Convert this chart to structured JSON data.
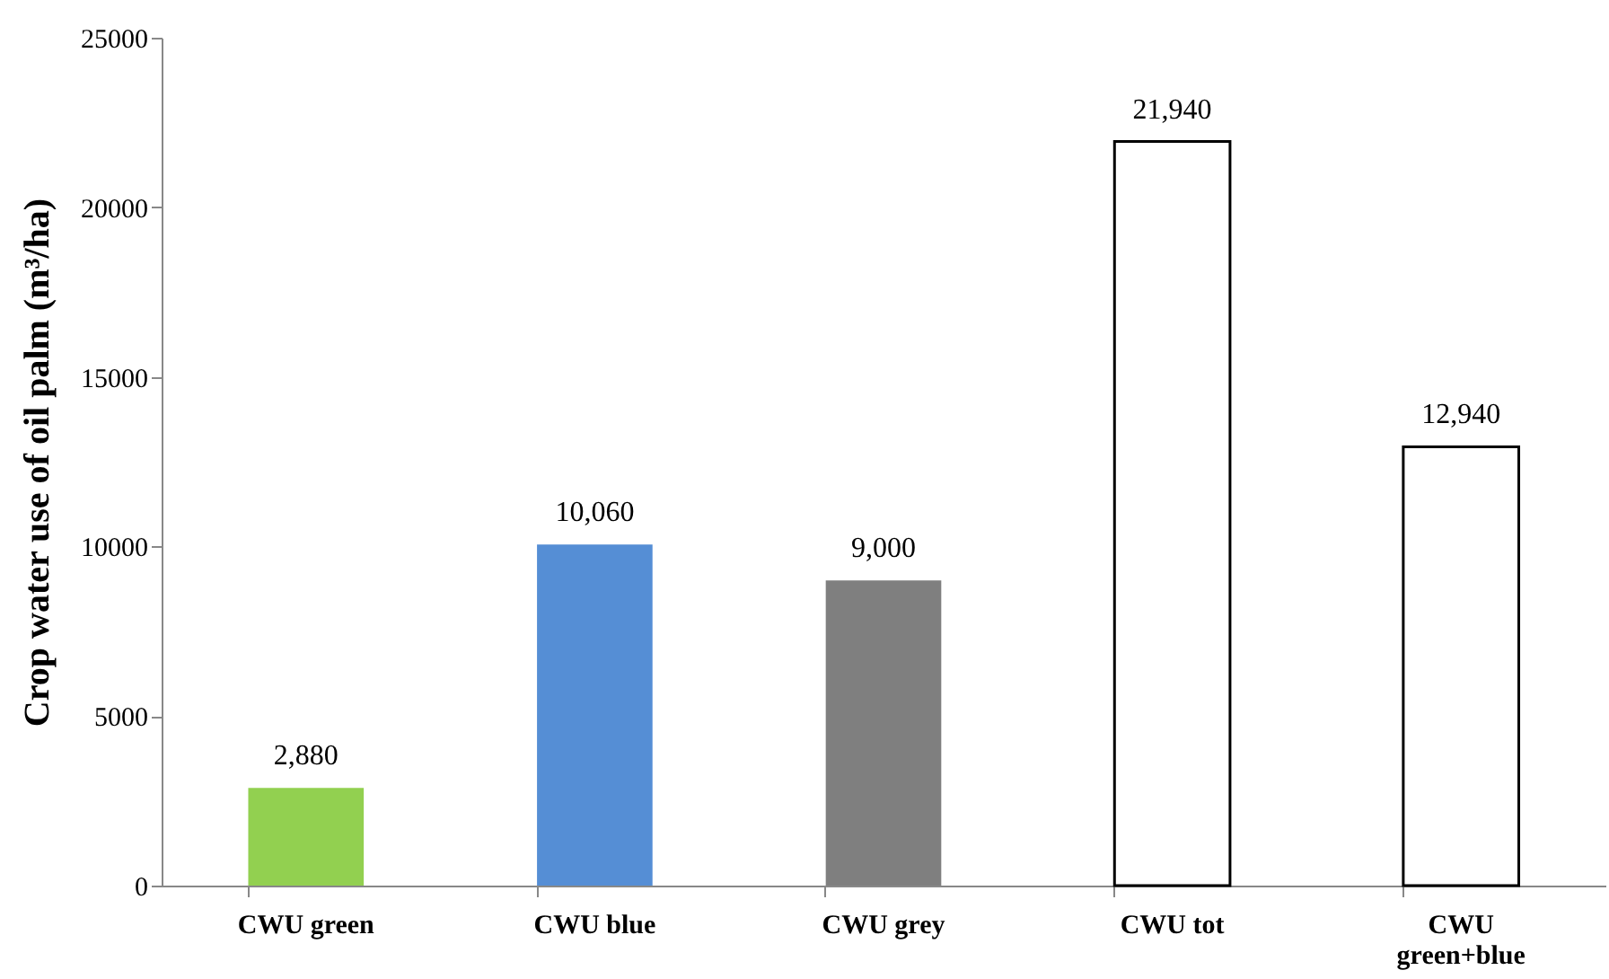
{
  "chart_data": {
    "type": "bar",
    "ylabel": "Crop water use of oil palm (m³/ha)",
    "categories": [
      "CWU green",
      "CWU blue",
      "CWU grey",
      "CWU tot",
      "CWU\ngreen+blue"
    ],
    "values": [
      2880,
      10060,
      9000,
      21940,
      12940
    ],
    "colors": [
      "#92d050",
      "#558ed5",
      "#7f7f7f",
      "#ffffff",
      "#ffffff"
    ],
    "value_labels": [
      "2,880",
      "10,060",
      "9,000",
      "21,940",
      "12,940"
    ],
    "ylim": [
      0,
      25000
    ],
    "yticks": [
      0,
      5000,
      10000,
      15000,
      20000,
      25000
    ],
    "grid": false,
    "legend": false
  }
}
